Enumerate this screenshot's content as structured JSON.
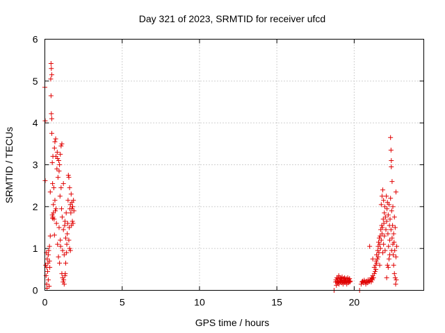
{
  "chart_data": {
    "type": "scatter",
    "title": "Day 321 of 2023, SRMTID for receiver ufcd",
    "xlabel": "GPS time / hours",
    "ylabel": "SRMTID / TECUs",
    "xlim": [
      0,
      24.5
    ],
    "ylim": [
      0,
      6
    ],
    "xticks": [
      0,
      5,
      10,
      15,
      20
    ],
    "yticks": [
      0,
      1,
      2,
      3,
      4,
      5,
      6
    ],
    "grid": true,
    "marker": "+",
    "color": "#e00000",
    "series": [
      {
        "name": "SRMTID",
        "points": [
          [
            0.0,
            4.85
          ],
          [
            0.02,
            4.05
          ],
          [
            0.02,
            2.62
          ],
          [
            0.05,
            0.6
          ],
          [
            0.08,
            0.35
          ],
          [
            0.1,
            0.9
          ],
          [
            0.12,
            0.15
          ],
          [
            0.12,
            0.55
          ],
          [
            0.14,
            0.05
          ],
          [
            0.15,
            0.75
          ],
          [
            0.18,
            0.45
          ],
          [
            0.2,
            0.65
          ],
          [
            0.22,
            0.25
          ],
          [
            0.22,
            0.85
          ],
          [
            0.25,
            0.95
          ],
          [
            0.28,
            0.1
          ],
          [
            0.3,
            0.7
          ],
          [
            0.3,
            1.05
          ],
          [
            0.32,
            0.55
          ],
          [
            0.35,
            2.35
          ],
          [
            0.35,
            1.3
          ],
          [
            0.38,
            5.05
          ],
          [
            0.4,
            5.42
          ],
          [
            0.4,
            4.65
          ],
          [
            0.42,
            5.3
          ],
          [
            0.42,
            4.22
          ],
          [
            0.45,
            4.1
          ],
          [
            0.45,
            5.15
          ],
          [
            0.45,
            3.75
          ],
          [
            0.48,
            3.05
          ],
          [
            0.48,
            1.8
          ],
          [
            0.5,
            1.72
          ],
          [
            0.5,
            2.55
          ],
          [
            0.52,
            1.75
          ],
          [
            0.52,
            3.2
          ],
          [
            0.55,
            1.85
          ],
          [
            0.55,
            2.05
          ],
          [
            0.58,
            2.45
          ],
          [
            0.6,
            1.7
          ],
          [
            0.62,
            3.4
          ],
          [
            0.62,
            1.32
          ],
          [
            0.65,
            3.55
          ],
          [
            0.65,
            2.15
          ],
          [
            0.68,
            1.9
          ],
          [
            0.7,
            3.62
          ],
          [
            0.72,
            1.95
          ],
          [
            0.72,
            3.2
          ],
          [
            0.75,
            1.6
          ],
          [
            0.78,
            2.9
          ],
          [
            0.8,
            3.3
          ],
          [
            0.82,
            3.15
          ],
          [
            0.82,
            1.1
          ],
          [
            0.85,
            2.7
          ],
          [
            0.88,
            0.8
          ],
          [
            0.9,
            3.1
          ],
          [
            0.92,
            2.85
          ],
          [
            0.92,
            1.5
          ],
          [
            0.95,
            0.65
          ],
          [
            0.95,
            3.0
          ],
          [
            0.98,
            2.25
          ],
          [
            1.0,
            3.25
          ],
          [
            1.0,
            1.2
          ],
          [
            1.02,
            1.05
          ],
          [
            1.05,
            2.45
          ],
          [
            1.05,
            3.45
          ],
          [
            1.08,
            1.95
          ],
          [
            1.1,
            3.5
          ],
          [
            1.1,
            0.4
          ],
          [
            1.12,
            1.75
          ],
          [
            1.15,
            0.3
          ],
          [
            1.15,
            0.95
          ],
          [
            1.18,
            0.2
          ],
          [
            1.2,
            2.55
          ],
          [
            1.2,
            1.45
          ],
          [
            1.22,
            0.25
          ],
          [
            1.25,
            0.15
          ],
          [
            1.25,
            0.85
          ],
          [
            1.28,
            1.55
          ],
          [
            1.3,
            0.35
          ],
          [
            1.3,
            1.65
          ],
          [
            1.32,
            0.4
          ],
          [
            1.35,
            1.25
          ],
          [
            1.35,
            0.65
          ],
          [
            1.38,
            1.85
          ],
          [
            1.4,
            0.9
          ],
          [
            1.42,
            1.1
          ],
          [
            1.45,
            1.35
          ],
          [
            1.48,
            1.6
          ],
          [
            1.5,
            2.15
          ],
          [
            1.52,
            2.75
          ],
          [
            1.55,
            2.7
          ],
          [
            1.55,
            1.2
          ],
          [
            1.58,
            1.5
          ],
          [
            1.6,
            1.0
          ],
          [
            1.6,
            2.45
          ],
          [
            1.62,
            1.95
          ],
          [
            1.65,
            2.05
          ],
          [
            1.65,
            0.95
          ],
          [
            1.68,
            1.85
          ],
          [
            1.7,
            2.3
          ],
          [
            1.72,
            1.55
          ],
          [
            1.75,
            2.1
          ],
          [
            1.75,
            1.95
          ],
          [
            1.78,
            1.65
          ],
          [
            1.8,
            2.0
          ],
          [
            1.82,
            1.6
          ],
          [
            1.85,
            2.15
          ],
          [
            1.88,
            1.9
          ],
          [
            18.7,
            0.0
          ],
          [
            18.8,
            0.2
          ],
          [
            18.82,
            0.25
          ],
          [
            18.85,
            0.12
          ],
          [
            18.88,
            0.3
          ],
          [
            18.9,
            0.22
          ],
          [
            18.92,
            0.18
          ],
          [
            18.95,
            0.28
          ],
          [
            18.98,
            0.2
          ],
          [
            19.0,
            0.35
          ],
          [
            19.02,
            0.15
          ],
          [
            19.05,
            0.25
          ],
          [
            19.08,
            0.3
          ],
          [
            19.1,
            0.2
          ],
          [
            19.12,
            0.22
          ],
          [
            19.15,
            0.28
          ],
          [
            19.18,
            0.18
          ],
          [
            19.2,
            0.25
          ],
          [
            19.22,
            0.32
          ],
          [
            19.25,
            0.2
          ],
          [
            19.28,
            0.15
          ],
          [
            19.3,
            0.24
          ],
          [
            19.32,
            0.28
          ],
          [
            19.35,
            0.2
          ],
          [
            19.38,
            0.3
          ],
          [
            19.4,
            0.18
          ],
          [
            19.42,
            0.25
          ],
          [
            19.45,
            0.22
          ],
          [
            19.48,
            0.28
          ],
          [
            19.5,
            0.2
          ],
          [
            19.52,
            0.15
          ],
          [
            19.55,
            0.25
          ],
          [
            19.58,
            0.3
          ],
          [
            19.6,
            0.2
          ],
          [
            19.62,
            0.18
          ],
          [
            19.65,
            0.25
          ],
          [
            19.68,
            0.22
          ],
          [
            19.7,
            0.28
          ],
          [
            19.72,
            0.2
          ],
          [
            19.75,
            0.22
          ],
          [
            20.35,
            0.0
          ],
          [
            20.45,
            0.15
          ],
          [
            20.5,
            0.2
          ],
          [
            20.55,
            0.22
          ],
          [
            20.6,
            0.18
          ],
          [
            20.65,
            0.24
          ],
          [
            20.7,
            0.2
          ],
          [
            20.75,
            0.15
          ],
          [
            20.8,
            0.22
          ],
          [
            20.85,
            0.18
          ],
          [
            20.9,
            0.25
          ],
          [
            20.95,
            0.2
          ],
          [
            21.0,
            0.22
          ],
          [
            21.0,
            1.05
          ],
          [
            21.05,
            0.25
          ],
          [
            21.1,
            0.2
          ],
          [
            21.12,
            0.3
          ],
          [
            21.15,
            0.28
          ],
          [
            21.18,
            0.25
          ],
          [
            21.2,
            0.35
          ],
          [
            21.2,
            0.75
          ],
          [
            21.25,
            0.3
          ],
          [
            21.3,
            0.4
          ],
          [
            21.3,
            0.55
          ],
          [
            21.35,
            0.45
          ],
          [
            21.38,
            0.6
          ],
          [
            21.4,
            0.5
          ],
          [
            21.42,
            0.7
          ],
          [
            21.45,
            0.65
          ],
          [
            21.45,
            0.85
          ],
          [
            21.5,
            0.75
          ],
          [
            21.52,
            0.95
          ],
          [
            21.55,
            0.8
          ],
          [
            21.55,
            1.05
          ],
          [
            21.58,
            1.15
          ],
          [
            21.6,
            0.9
          ],
          [
            21.62,
            1.25
          ],
          [
            21.65,
            1.1
          ],
          [
            21.65,
            0.6
          ],
          [
            21.68,
            1.3
          ],
          [
            21.7,
            1.0
          ],
          [
            21.72,
            1.45
          ],
          [
            21.75,
            1.2
          ],
          [
            21.75,
            2.05
          ],
          [
            21.78,
            1.55
          ],
          [
            21.8,
            1.35
          ],
          [
            21.8,
            2.25
          ],
          [
            21.82,
            1.5
          ],
          [
            21.85,
            0.9
          ],
          [
            21.85,
            2.4
          ],
          [
            21.88,
            1.7
          ],
          [
            21.9,
            1.1
          ],
          [
            21.9,
            2.15
          ],
          [
            21.92,
            1.6
          ],
          [
            21.95,
            1.85
          ],
          [
            21.95,
            1.3
          ],
          [
            21.98,
            2.0
          ],
          [
            22.0,
            0.95
          ],
          [
            22.02,
            1.75
          ],
          [
            22.05,
            1.45
          ],
          [
            22.08,
            2.25
          ],
          [
            22.1,
            0.3
          ],
          [
            22.1,
            1.65
          ],
          [
            22.12,
            1.95
          ],
          [
            22.15,
            0.6
          ],
          [
            22.15,
            2.1
          ],
          [
            22.18,
            1.35
          ],
          [
            22.2,
            0.55
          ],
          [
            22.2,
            1.8
          ],
          [
            22.22,
            1.05
          ],
          [
            22.25,
            2.05
          ],
          [
            22.25,
            0.75
          ],
          [
            22.28,
            1.55
          ],
          [
            22.3,
            1.2
          ],
          [
            22.3,
            0.85
          ],
          [
            22.32,
            1.7
          ],
          [
            22.35,
            3.65
          ],
          [
            22.35,
            2.2
          ],
          [
            22.38,
            3.35
          ],
          [
            22.38,
            1.45
          ],
          [
            22.4,
            3.1
          ],
          [
            22.4,
            2.95
          ],
          [
            22.42,
            1.9
          ],
          [
            22.42,
            0.95
          ],
          [
            22.45,
            2.6
          ],
          [
            22.45,
            1.25
          ],
          [
            22.48,
            1.55
          ],
          [
            22.5,
            1.1
          ],
          [
            22.5,
            2.0
          ],
          [
            22.52,
            0.85
          ],
          [
            22.55,
            1.35
          ],
          [
            22.55,
            0.6
          ],
          [
            22.58,
            1.15
          ],
          [
            22.6,
            1.75
          ],
          [
            22.6,
            0.4
          ],
          [
            22.62,
            0.95
          ],
          [
            22.65,
            0.3
          ],
          [
            22.65,
            1.5
          ],
          [
            22.68,
            0.15
          ],
          [
            22.7,
            2.35
          ],
          [
            22.7,
            0.8
          ],
          [
            22.72,
            0.25
          ],
          [
            22.75,
            1.05
          ]
        ]
      }
    ]
  }
}
